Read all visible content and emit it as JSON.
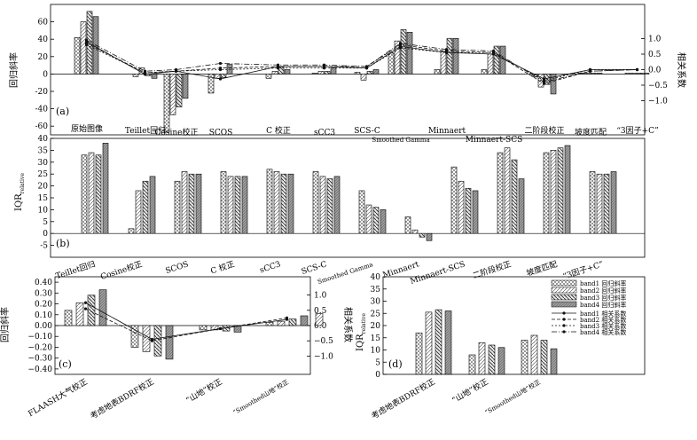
{
  "figure": {
    "hatch_colors": {
      "band1": "#ffffff",
      "band2": "#f2f2f2",
      "band3": "#e6e6e6",
      "band4": "#9a9a9a"
    },
    "line_color": "#111111"
  },
  "chart_data": [
    {
      "id": "a",
      "type": "bar",
      "panel_label": "(a)",
      "ylabel": "回归斜率",
      "y2label": "相关系数",
      "ylim": [
        -70,
        80
      ],
      "yticks": [
        -60,
        -40,
        -20,
        0,
        20,
        40,
        60
      ],
      "ylim2": [
        -2.1,
        2.1
      ],
      "y2ticks": [
        -1.0,
        -0.5,
        0.0,
        0.5,
        1.0
      ],
      "y2ticklabels": [
        "−1.0",
        "−0.5",
        "0.0",
        "0.5",
        "1.0"
      ],
      "categories": [
        "原始图像",
        "Teillet回归",
        "Cosine校正",
        "SCOS",
        "C 校正",
        "sCC3",
        "SCS-C",
        "Smoothed Gamma",
        "Minnaert",
        "Minnaert-SCS",
        "二阶段校正",
        "坡度匹配",
        "“3因子+C”"
      ],
      "series": [
        {
          "name": "band1",
          "values": [
            42,
            -3,
            -67,
            -22,
            -5,
            1,
            2,
            24,
            5,
            5,
            -3,
            1,
            1
          ]
        },
        {
          "name": "band2",
          "values": [
            60,
            7,
            -47,
            -5,
            3,
            3,
            -7,
            38,
            26,
            23,
            -15,
            1,
            1
          ]
        },
        {
          "name": "band3",
          "values": [
            72,
            -2,
            -38,
            -4,
            8,
            3,
            3,
            51,
            41,
            32,
            -12,
            1,
            1
          ]
        },
        {
          "name": "band4",
          "values": [
            66,
            -5,
            -28,
            11,
            5,
            7,
            5,
            48,
            41,
            32,
            -23,
            1,
            1
          ]
        }
      ],
      "correlation_series": [
        {
          "name": "band1",
          "values": [
            0.9,
            -0.15,
            -0.05,
            -0.3,
            0.1,
            0.1,
            0.05,
            0.75,
            0.55,
            0.5,
            -0.3,
            0.0,
            0.0
          ]
        },
        {
          "name": "band2",
          "values": [
            0.85,
            -0.1,
            -0.05,
            0.05,
            0.1,
            0.1,
            0.1,
            0.8,
            0.6,
            0.55,
            -0.45,
            -0.05,
            0.0
          ]
        },
        {
          "name": "band3",
          "values": [
            0.8,
            -0.1,
            -0.05,
            0.0,
            0.05,
            0.05,
            0.05,
            0.7,
            0.55,
            0.55,
            -0.35,
            0.0,
            0.0
          ]
        },
        {
          "name": "band4",
          "values": [
            0.95,
            -0.05,
            0.0,
            0.2,
            0.15,
            0.15,
            0.1,
            0.85,
            0.65,
            0.6,
            -0.4,
            -0.05,
            0.0
          ]
        }
      ]
    },
    {
      "id": "b",
      "type": "bar",
      "panel_label": "(b)",
      "ylabel": "IQR",
      "ylabel_sub": "relative",
      "ylim": [
        -10,
        40
      ],
      "yticks": [
        -5,
        0,
        5,
        10,
        15,
        20,
        25,
        30,
        35,
        40
      ],
      "categories": [
        "Teillet回归",
        "Cosine校正",
        "SCOS",
        "C 校正",
        "sCC3",
        "SCS-C",
        "Smoothed Gamma",
        "Minnaert",
        "Minnaert-SCS",
        "二阶段校正",
        "坡度匹配",
        "“3因子+C”"
      ],
      "series": [
        {
          "name": "band1",
          "values": [
            33,
            2,
            22,
            26,
            27,
            26,
            18,
            7,
            28,
            34,
            34,
            26
          ]
        },
        {
          "name": "band2",
          "values": [
            34,
            18,
            26,
            24,
            26,
            24,
            12,
            1.5,
            22,
            36,
            35,
            25
          ]
        },
        {
          "name": "band3",
          "values": [
            33,
            22,
            25,
            24,
            25,
            23,
            11,
            -1.5,
            19,
            31,
            36,
            25
          ]
        },
        {
          "name": "band4",
          "values": [
            38,
            24,
            25,
            24,
            25,
            24,
            10,
            -3,
            18,
            23,
            37,
            26
          ]
        }
      ]
    },
    {
      "id": "c",
      "type": "bar",
      "panel_label": "(c)",
      "ylabel": "回归斜率",
      "y2label": "相关系数",
      "ylim": [
        -0.45,
        0.45
      ],
      "yticks": [
        -0.4,
        -0.3,
        -0.2,
        -0.1,
        0.0,
        0.1,
        0.2,
        0.3,
        0.4
      ],
      "yticklabels": [
        "−0.40",
        "−0.30",
        "−0.20",
        "−0.10",
        "0.00",
        "0.10",
        "0.20",
        "0.30",
        "0.40"
      ],
      "ylim2": [
        -1.6,
        1.6
      ],
      "y2ticks": [
        -1.0,
        -0.5,
        0.0,
        0.5,
        1.0
      ],
      "y2ticklabels": [
        "−1.0",
        "−0.5",
        "0.0",
        "0.5",
        "1.0"
      ],
      "categories": [
        "FLAASH大气校正",
        "考虑地表BDRF校正",
        "“山地”校正",
        "“Smoothed山地”校正"
      ],
      "series": [
        {
          "name": "band1",
          "values": [
            0.14,
            -0.2,
            -0.04,
            0.03
          ]
        },
        {
          "name": "band2",
          "values": [
            0.21,
            -0.24,
            -0.04,
            0.04
          ]
        },
        {
          "name": "band3",
          "values": [
            0.28,
            -0.28,
            -0.05,
            0.06
          ]
        },
        {
          "name": "band4",
          "values": [
            0.33,
            -0.31,
            -0.06,
            0.09
          ]
        }
      ],
      "extra_bar": {
        "after_category": 3,
        "value": 0.11
      },
      "correlation_series": [
        {
          "name": "band1",
          "values": [
            0.75,
            -0.45,
            -0.1,
            0.2
          ]
        },
        {
          "name": "band4",
          "values": [
            0.55,
            -0.5,
            -0.1,
            0.25
          ]
        }
      ]
    },
    {
      "id": "d",
      "type": "bar",
      "panel_label": "(d)",
      "ylabel": "IQR",
      "ylabel_sub": "relative",
      "ylim": [
        0,
        40
      ],
      "yticks": [
        0,
        5,
        10,
        15,
        20,
        25,
        30,
        35,
        40
      ],
      "categories": [
        "考虑地表BDRF校正",
        "“山地”校正",
        "“Smoothed山地”校正"
      ],
      "series": [
        {
          "name": "band1",
          "values": [
            17,
            8,
            14
          ]
        },
        {
          "name": "band2",
          "values": [
            25.5,
            13,
            16
          ]
        },
        {
          "name": "band3",
          "values": [
            26.5,
            12,
            14
          ]
        },
        {
          "name": "band4",
          "values": [
            26,
            11,
            10.5
          ]
        }
      ],
      "legend": {
        "placement": "right",
        "bar_entries": [
          "band1 回归斜率",
          "band2 回归斜率",
          "band3 回归斜率",
          "band4 回归斜率"
        ],
        "line_entries": [
          "band1 相关系数",
          "band2 相关系数",
          "band3 相关系数",
          "band4 相关系数"
        ]
      }
    }
  ]
}
